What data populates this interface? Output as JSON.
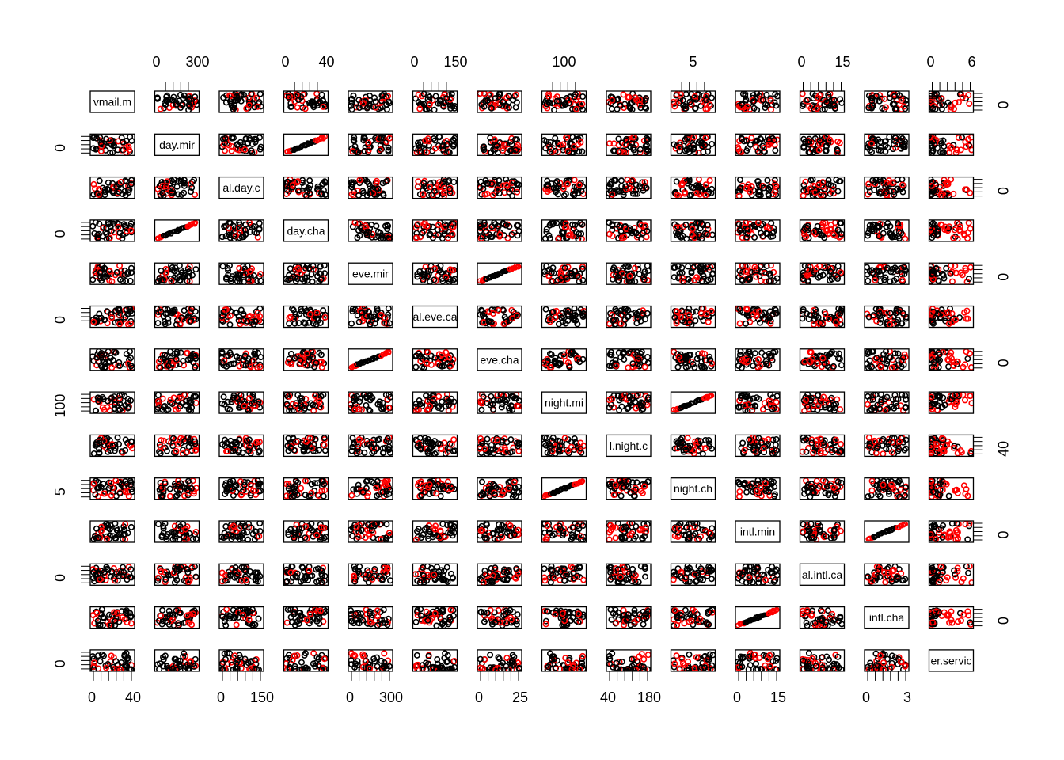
{
  "chart_data": {
    "type": "scatter",
    "kind": "scatterplot-matrix",
    "title": "",
    "variables": [
      "vmail.m",
      "day.mir",
      "al.day.c",
      "day.cha",
      "eve.mir",
      "al.eve.ca",
      "eve.cha",
      "night.mi",
      "l.night.c",
      "night.ch",
      "intl.min",
      "al.intl.ca",
      "intl.cha",
      "er.servic"
    ],
    "series": [
      {
        "name": "",
        "color": "#000000",
        "marker": "open-circle"
      },
      {
        "name": "",
        "color": "#ff0000",
        "marker": "open-circle"
      }
    ],
    "axis_ticks": {
      "top": [
        {
          "col": 1,
          "labels": [
            "0",
            "300"
          ]
        },
        {
          "col": 3,
          "labels": [
            "0",
            "40"
          ]
        },
        {
          "col": 5,
          "labels": [
            "0",
            "150"
          ]
        },
        {
          "col": 7,
          "labels": [
            "100"
          ]
        },
        {
          "col": 9,
          "labels": [
            "5"
          ]
        },
        {
          "col": 11,
          "labels": [
            "0",
            "15"
          ]
        },
        {
          "col": 13,
          "labels": [
            "0",
            "6"
          ]
        }
      ],
      "bottom": [
        {
          "col": 0,
          "labels": [
            "0",
            "40"
          ]
        },
        {
          "col": 2,
          "labels": [
            "0",
            "150"
          ]
        },
        {
          "col": 4,
          "labels": [
            "0",
            "300"
          ]
        },
        {
          "col": 6,
          "labels": [
            "0",
            "25"
          ]
        },
        {
          "col": 8,
          "labels": [
            "40",
            "180"
          ]
        },
        {
          "col": 10,
          "labels": [
            "0",
            "15"
          ]
        },
        {
          "col": 12,
          "labels": [
            "0",
            "3"
          ]
        }
      ],
      "left": [
        {
          "row": 1,
          "labels": [
            "0"
          ]
        },
        {
          "row": 3,
          "labels": [
            "0"
          ]
        },
        {
          "row": 5,
          "labels": [
            "0"
          ]
        },
        {
          "row": 7,
          "labels": [
            "100"
          ]
        },
        {
          "row": 9,
          "labels": [
            "5"
          ]
        },
        {
          "row": 11,
          "labels": [
            "0"
          ]
        },
        {
          "row": 13,
          "labels": [
            "0"
          ]
        }
      ],
      "right": [
        {
          "row": 0,
          "labels": [
            "0"
          ]
        },
        {
          "row": 2,
          "labels": [
            "0"
          ]
        },
        {
          "row": 4,
          "labels": [
            "0"
          ]
        },
        {
          "row": 6,
          "labels": [
            "0"
          ]
        },
        {
          "row": 8,
          "labels": [
            "40"
          ]
        },
        {
          "row": 10,
          "labels": [
            "0"
          ]
        },
        {
          "row": 12,
          "labels": [
            "0"
          ]
        }
      ]
    },
    "linear_pairs": [
      [
        "day.mir",
        "day.cha"
      ],
      [
        "eve.mir",
        "eve.cha"
      ],
      [
        "night.mi",
        "night.ch"
      ],
      [
        "intl.min",
        "intl.cha"
      ]
    ],
    "xlabel": "",
    "ylabel": "",
    "legend": "none",
    "grid": false
  }
}
